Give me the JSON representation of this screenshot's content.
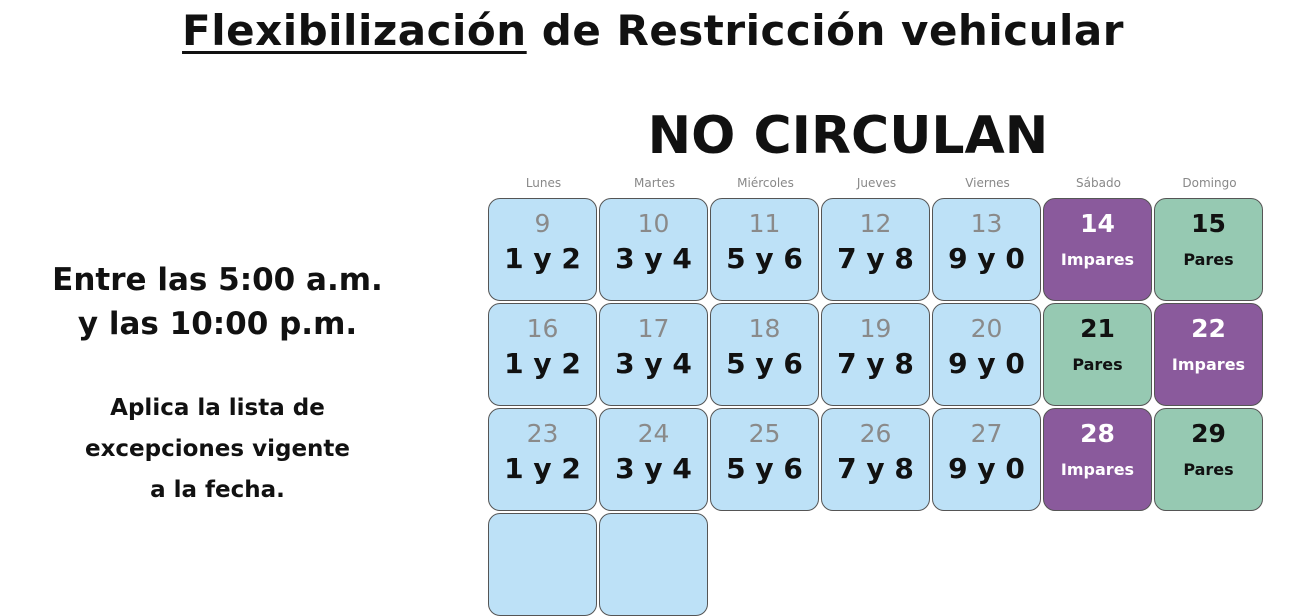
{
  "title": {
    "underlined": "Flexibilización",
    "rest": " de Restricción vehicular"
  },
  "subtitle": "NO CIRCULAN",
  "hours": {
    "line1": "Entre las 5:00 a.m.",
    "line2": "y las 10:00 p.m."
  },
  "note": {
    "line1": "Aplica la lista de",
    "line2": "excepciones vigente",
    "line3": "a la fecha."
  },
  "colors": {
    "weekday": "#bde1f7",
    "impares": "#8a5a9c",
    "pares": "#96c9b2"
  },
  "days": [
    "Lunes",
    "Martes",
    "Miércoles",
    "Jueves",
    "Viernes",
    "Sábado",
    "Domingo"
  ],
  "weeks": [
    [
      {
        "date": "9",
        "plates": "1 y 2",
        "type": "weekday"
      },
      {
        "date": "10",
        "plates": "3 y 4",
        "type": "weekday"
      },
      {
        "date": "11",
        "plates": "5 y 6",
        "type": "weekday"
      },
      {
        "date": "12",
        "plates": "7 y 8",
        "type": "weekday"
      },
      {
        "date": "13",
        "plates": "9 y 0",
        "type": "weekday"
      },
      {
        "date": "14",
        "plates": "Impares",
        "type": "purple"
      },
      {
        "date": "15",
        "plates": "Pares",
        "type": "green"
      }
    ],
    [
      {
        "date": "16",
        "plates": "1 y 2",
        "type": "weekday"
      },
      {
        "date": "17",
        "plates": "3 y 4",
        "type": "weekday"
      },
      {
        "date": "18",
        "plates": "5 y 6",
        "type": "weekday"
      },
      {
        "date": "19",
        "plates": "7 y 8",
        "type": "weekday"
      },
      {
        "date": "20",
        "plates": "9 y 0",
        "type": "weekday"
      },
      {
        "date": "21",
        "plates": "Pares",
        "type": "green"
      },
      {
        "date": "22",
        "plates": "Impares",
        "type": "purple"
      }
    ],
    [
      {
        "date": "23",
        "plates": "1 y 2",
        "type": "weekday"
      },
      {
        "date": "24",
        "plates": "3 y 4",
        "type": "weekday"
      },
      {
        "date": "25",
        "plates": "5 y 6",
        "type": "weekday"
      },
      {
        "date": "26",
        "plates": "7 y 8",
        "type": "weekday"
      },
      {
        "date": "27",
        "plates": "9 y 0",
        "type": "weekday"
      },
      {
        "date": "28",
        "plates": "Impares",
        "type": "purple"
      },
      {
        "date": "29",
        "plates": "Pares",
        "type": "green"
      }
    ],
    [
      {
        "date": "",
        "plates": "",
        "type": "weekday"
      },
      {
        "date": "",
        "plates": "",
        "type": "weekday"
      }
    ]
  ]
}
